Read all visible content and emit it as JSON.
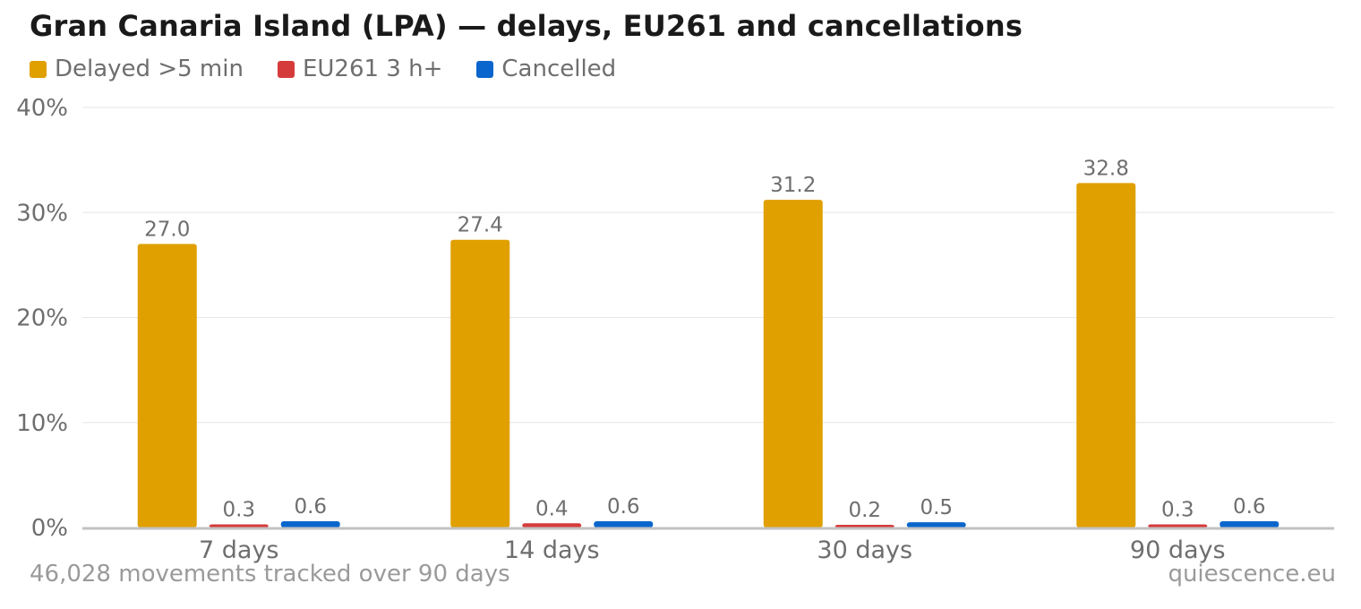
{
  "chart_data": {
    "type": "bar",
    "title": "Gran Canaria Island (LPA) — delays, EU261 and cancellations",
    "categories": [
      "7 days",
      "14 days",
      "30 days",
      "90 days"
    ],
    "series": [
      {
        "name": "Delayed >5 min",
        "color": "#E0A000",
        "values": [
          27.0,
          27.4,
          31.2,
          32.8
        ]
      },
      {
        "name": "EU261 3 h+",
        "color": "#D63B3B",
        "values": [
          0.3,
          0.4,
          0.2,
          0.3
        ]
      },
      {
        "name": "Cancelled",
        "color": "#0A66CC",
        "values": [
          0.6,
          0.6,
          0.5,
          0.6
        ]
      }
    ],
    "ylim": [
      0,
      40
    ],
    "yticks": [
      "0%",
      "10%",
      "20%",
      "30%",
      "40%"
    ],
    "ytick_values": [
      0,
      10,
      20,
      30,
      40
    ],
    "grid": true,
    "legend": "top-left"
  },
  "footnote": "46,028 movements tracked over 90 days",
  "source": "quiescence.eu"
}
